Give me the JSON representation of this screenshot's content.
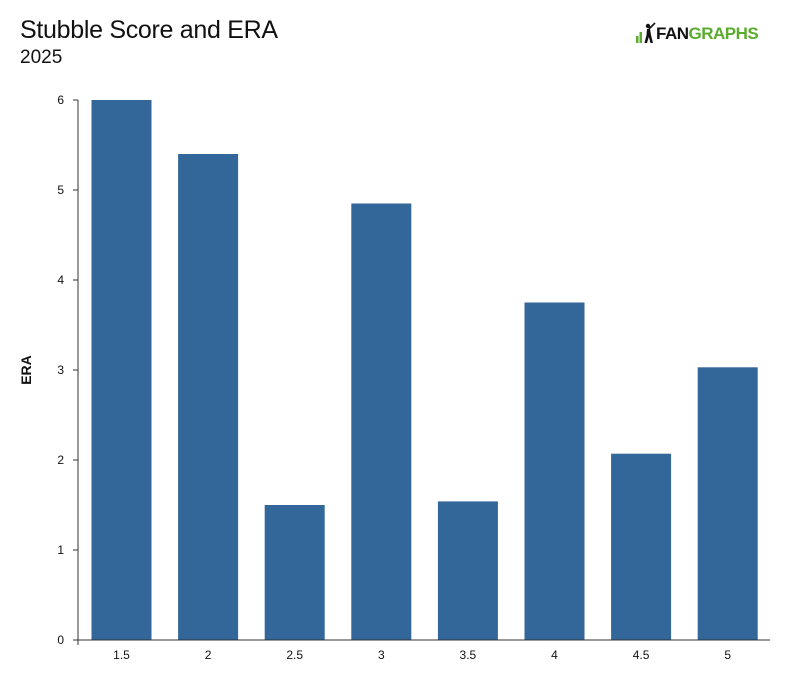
{
  "header": {
    "title": "Stubble Score and ERA",
    "subtitle": "2025",
    "logo": {
      "text_primary": "FAN",
      "text_accent": "GRAPHS",
      "accent_color": "#5aab2e",
      "icon": "fangraphs-batter-icon"
    }
  },
  "chart_data": {
    "type": "bar",
    "title": "Stubble Score and ERA",
    "subtitle": "2025",
    "xlabel": "",
    "ylabel": "ERA",
    "categories": [
      "1.5",
      "2",
      "2.5",
      "3",
      "3.5",
      "4",
      "4.5",
      "5"
    ],
    "values": [
      6.0,
      5.4,
      1.5,
      4.85,
      1.54,
      3.75,
      2.07,
      3.03
    ],
    "ylim": [
      0,
      6
    ],
    "yticks": [
      0,
      1,
      2,
      3,
      4,
      5,
      6
    ],
    "bar_color": "#336699",
    "grid": false,
    "legend": "none"
  }
}
